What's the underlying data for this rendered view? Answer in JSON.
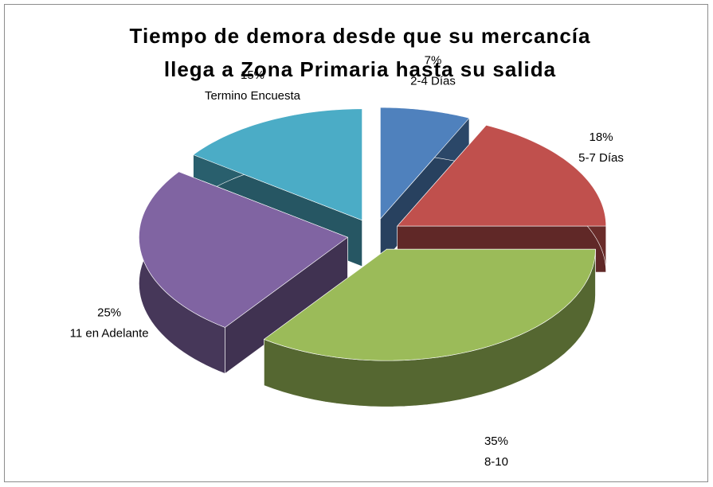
{
  "chart_data": {
    "type": "pie3d",
    "title": [
      "Tiempo de demora desde que su mercancía",
      "llega a Zona Primaria hasta su salida"
    ],
    "categories": [
      "2-4 Días",
      "5-7 Días",
      "8-10",
      "11 en Adelante",
      "Termino Encuesta"
    ],
    "values": [
      7,
      18,
      35,
      25,
      15
    ],
    "value_labels": [
      "7%",
      "18%",
      "35%",
      "25%",
      "15%"
    ],
    "colors": [
      "#4f81bd",
      "#c0504d",
      "#9bbb59",
      "#8064a2",
      "#4bacc6"
    ]
  }
}
